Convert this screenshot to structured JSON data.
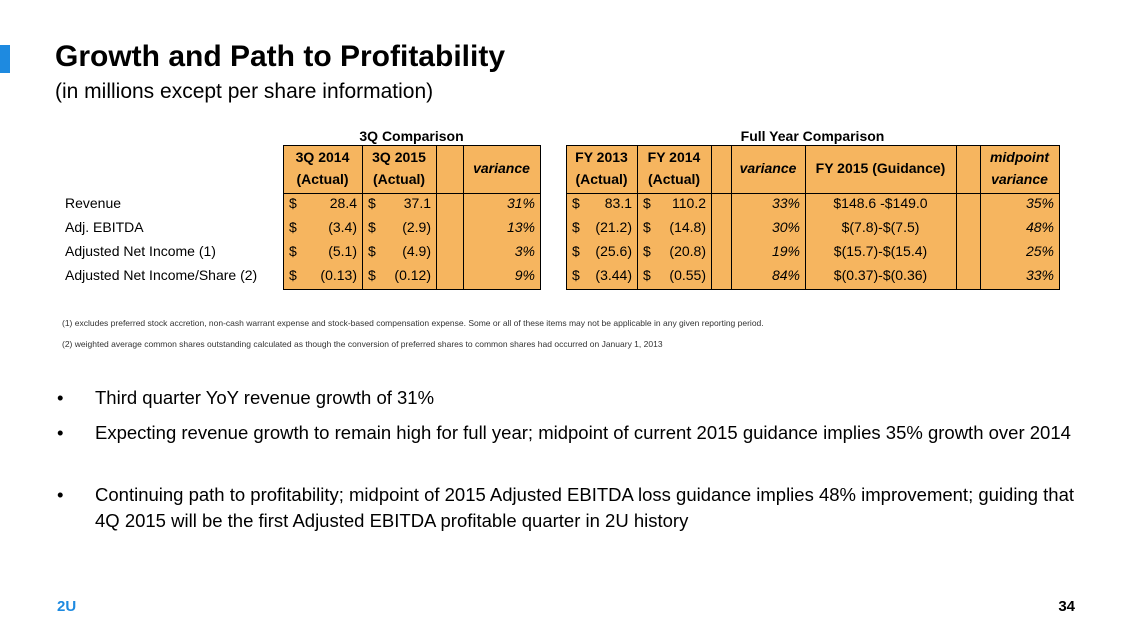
{
  "header": {
    "title": "Growth and Path to Profitability",
    "subtitle": "(in millions except per share information)"
  },
  "table": {
    "groups": [
      "3Q Comparison",
      "Full Year Comparison"
    ],
    "headers": [
      [
        "3Q 2014",
        "(Actual)"
      ],
      [
        "3Q 2015",
        "(Actual)"
      ],
      [
        "variance"
      ],
      [
        "FY 2013",
        "(Actual)"
      ],
      [
        "FY 2014",
        "(Actual)"
      ],
      [
        "variance"
      ],
      [
        "FY 2015 (Guidance)"
      ],
      [
        "midpoint",
        "variance"
      ]
    ],
    "rows": [
      {
        "label": "Revenue",
        "cells": [
          [
            "$",
            "28.4"
          ],
          [
            "$",
            "37.1"
          ],
          "31%",
          [
            "$",
            "83.1"
          ],
          [
            "$",
            "110.2"
          ],
          "33%",
          "$148.6 -$149.0",
          "35%"
        ]
      },
      {
        "label": "Adj. EBITDA",
        "cells": [
          [
            "$",
            "(3.4)"
          ],
          [
            "$",
            "(2.9)"
          ],
          "13%",
          [
            "$",
            "(21.2)"
          ],
          [
            "$",
            "(14.8)"
          ],
          "30%",
          "$(7.8)-$(7.5)",
          "48%"
        ]
      },
      {
        "label": "Adjusted Net Income (1)",
        "cells": [
          [
            "$",
            "(5.1)"
          ],
          [
            "$",
            "(4.9)"
          ],
          "3%",
          [
            "$",
            "(25.6)"
          ],
          [
            "$",
            "(20.8)"
          ],
          "19%",
          "$(15.7)-$(15.4)",
          "25%"
        ]
      },
      {
        "label": "Adjusted Net Income/Share (2)",
        "cells": [
          [
            "$",
            "(0.13)"
          ],
          [
            "$",
            "(0.12)"
          ],
          "9%",
          [
            "$",
            "(3.44)"
          ],
          [
            "$",
            "(0.55)"
          ],
          "84%",
          "$(0.37)-$(0.36)",
          "33%"
        ]
      }
    ]
  },
  "footnotes": [
    "(1) excludes preferred stock accretion, non-cash warrant expense and stock-based compensation expense. Some or all of these items may not be applicable in any given reporting period.",
    "(2) weighted average common shares outstanding calculated as though the conversion of preferred shares to common shares had occurred on January 1, 2013"
  ],
  "bullets": [
    "Third quarter YoY revenue growth of 31%",
    "Expecting revenue growth to remain high for full year; midpoint of current 2015 guidance implies 35% growth over 2014",
    "Continuing path to profitability; midpoint of 2015 Adjusted EBITDA loss guidance implies 48% improvement; guiding that 4Q 2015 will be the first Adjusted EBITDA profitable quarter in 2U history"
  ],
  "footer": {
    "logo": "2U",
    "page": "34"
  }
}
